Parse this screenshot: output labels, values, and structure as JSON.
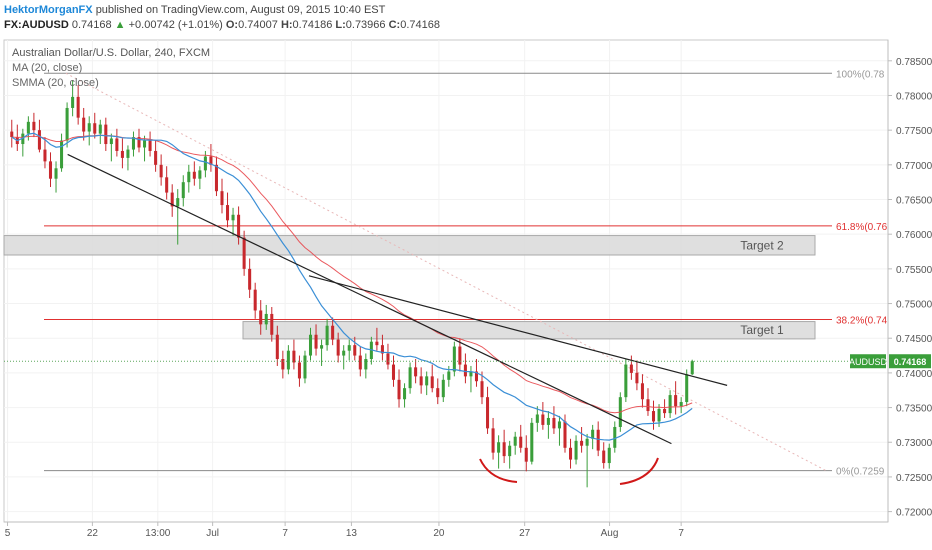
{
  "header": {
    "author": "HektorMorganFX",
    "published": "published on TradingView.com, August 09, 2015 10:40 EST",
    "symbol": "FX:AUDUSD",
    "last": "0.74168",
    "change": "+0.00742 (+1.01%)",
    "open_label": "O:",
    "open": "0.74007",
    "high_label": "H:",
    "high": "0.74186",
    "low_label": "L:",
    "low": "0.73966",
    "close_label": "C:",
    "close": "0.74168",
    "up_arrow": "▲"
  },
  "legend": {
    "title": "Australian Dollar/U.S. Dollar, 240, FXCM",
    "ma": "MA (20, close)",
    "smma": "SMMA (20, close)"
  },
  "chart_data": {
    "type": "candlestick",
    "title": "Australian Dollar/U.S. Dollar, 240, FXCM",
    "ylim": [
      0.7185,
      0.788
    ],
    "y_ticks": [
      "0.78500",
      "0.78000",
      "0.77500",
      "0.77000",
      "0.76500",
      "0.76000",
      "0.75500",
      "0.75000",
      "0.74500",
      "0.74000",
      "0.73500",
      "0.73000",
      "0.72500",
      "0.72000"
    ],
    "x_ticks": [
      "5",
      "22",
      "13:00",
      "Jul",
      "7",
      "13",
      "20",
      "27",
      "Aug",
      "7"
    ],
    "last_price_tag": "AUDUSD",
    "last_price": "0.74168",
    "colors": {
      "up": "#3a9e3a",
      "down": "#c8282d",
      "ma": "#e8474c",
      "smma": "#3b8fd6",
      "fib": "#e03030",
      "trend": "#222222"
    },
    "fib_levels": [
      {
        "label": "100%(0.78",
        "value": 0.7832
      },
      {
        "label": "61.8%(0.76",
        "value": 0.7612
      },
      {
        "label": "38.2%(0.74",
        "value": 0.7477
      },
      {
        "label": "0%(0.7259",
        "value": 0.7259
      }
    ],
    "targets": [
      {
        "label": "Target 2",
        "low": 0.757,
        "high": 0.7598
      },
      {
        "label": "Target 1",
        "low": 0.7449,
        "high": 0.7474
      }
    ],
    "trendlines": [
      {
        "x1": 0.072,
        "y1": 0.7715,
        "x2": 0.755,
        "y2": 0.7298
      },
      {
        "x1": 0.345,
        "y1": 0.754,
        "x2": 0.818,
        "y2": 0.7382
      }
    ],
    "ohlc": [
      [
        0.7748,
        0.7765,
        0.7725,
        0.774
      ],
      [
        0.774,
        0.7758,
        0.772,
        0.773
      ],
      [
        0.773,
        0.7752,
        0.7712,
        0.7745
      ],
      [
        0.7745,
        0.777,
        0.7735,
        0.7762
      ],
      [
        0.7762,
        0.7775,
        0.774,
        0.775
      ],
      [
        0.775,
        0.7765,
        0.7718,
        0.7722
      ],
      [
        0.7722,
        0.774,
        0.7695,
        0.7705
      ],
      [
        0.7705,
        0.7718,
        0.7668,
        0.768
      ],
      [
        0.768,
        0.7705,
        0.766,
        0.7695
      ],
      [
        0.7695,
        0.7745,
        0.769,
        0.7735
      ],
      [
        0.7735,
        0.779,
        0.7725,
        0.7782
      ],
      [
        0.7782,
        0.7822,
        0.777,
        0.7798
      ],
      [
        0.7798,
        0.7815,
        0.7758,
        0.7768
      ],
      [
        0.7768,
        0.7782,
        0.7735,
        0.7748
      ],
      [
        0.7748,
        0.777,
        0.7728,
        0.776
      ],
      [
        0.776,
        0.7775,
        0.7738,
        0.7745
      ],
      [
        0.7745,
        0.7765,
        0.773,
        0.7758
      ],
      [
        0.7758,
        0.7768,
        0.772,
        0.773
      ],
      [
        0.773,
        0.7745,
        0.7705,
        0.7738
      ],
      [
        0.7738,
        0.7752,
        0.7712,
        0.772
      ],
      [
        0.772,
        0.7738,
        0.7695,
        0.771
      ],
      [
        0.771,
        0.7728,
        0.7692,
        0.7722
      ],
      [
        0.7722,
        0.7748,
        0.7712,
        0.774
      ],
      [
        0.774,
        0.7752,
        0.7718,
        0.7725
      ],
      [
        0.7725,
        0.7742,
        0.7705,
        0.7735
      ],
      [
        0.7735,
        0.7748,
        0.7712,
        0.772
      ],
      [
        0.772,
        0.7735,
        0.769,
        0.77
      ],
      [
        0.77,
        0.7715,
        0.767,
        0.7682
      ],
      [
        0.7682,
        0.7698,
        0.765,
        0.766
      ],
      [
        0.766,
        0.7672,
        0.7625,
        0.764
      ],
      [
        0.764,
        0.7665,
        0.7585,
        0.7652
      ],
      [
        0.7652,
        0.7685,
        0.764,
        0.7675
      ],
      [
        0.7675,
        0.77,
        0.766,
        0.769
      ],
      [
        0.769,
        0.7705,
        0.767,
        0.768
      ],
      [
        0.768,
        0.7698,
        0.7665,
        0.7692
      ],
      [
        0.7692,
        0.772,
        0.7682,
        0.7712
      ],
      [
        0.7712,
        0.773,
        0.769,
        0.77
      ],
      [
        0.77,
        0.7712,
        0.7655,
        0.7662
      ],
      [
        0.7662,
        0.768,
        0.763,
        0.7642
      ],
      [
        0.7642,
        0.766,
        0.761,
        0.762
      ],
      [
        0.762,
        0.7638,
        0.7598,
        0.7628
      ],
      [
        0.7628,
        0.764,
        0.7585,
        0.7595
      ],
      [
        0.7595,
        0.7605,
        0.754,
        0.755
      ],
      [
        0.755,
        0.7565,
        0.7508,
        0.752
      ],
      [
        0.752,
        0.753,
        0.7478,
        0.749
      ],
      [
        0.749,
        0.7505,
        0.7455,
        0.747
      ],
      [
        0.747,
        0.7498,
        0.7462,
        0.7485
      ],
      [
        0.7485,
        0.7495,
        0.7445,
        0.7455
      ],
      [
        0.7455,
        0.7468,
        0.741,
        0.742
      ],
      [
        0.742,
        0.7432,
        0.7392,
        0.7405
      ],
      [
        0.7405,
        0.744,
        0.7398,
        0.7432
      ],
      [
        0.7432,
        0.7448,
        0.7405,
        0.7415
      ],
      [
        0.7415,
        0.7425,
        0.738,
        0.7392
      ],
      [
        0.7392,
        0.7432,
        0.7385,
        0.7425
      ],
      [
        0.7425,
        0.7465,
        0.7418,
        0.7455
      ],
      [
        0.7455,
        0.747,
        0.7425,
        0.7435
      ],
      [
        0.7435,
        0.7448,
        0.741,
        0.744
      ],
      [
        0.744,
        0.7478,
        0.7432,
        0.7468
      ],
      [
        0.7468,
        0.748,
        0.744,
        0.7448
      ],
      [
        0.7448,
        0.7458,
        0.7415,
        0.7425
      ],
      [
        0.7425,
        0.744,
        0.7405,
        0.7432
      ],
      [
        0.7432,
        0.7448,
        0.7418,
        0.744
      ],
      [
        0.744,
        0.7452,
        0.7418,
        0.7425
      ],
      [
        0.7425,
        0.7438,
        0.7395,
        0.7405
      ],
      [
        0.7405,
        0.7428,
        0.7392,
        0.742
      ],
      [
        0.742,
        0.7452,
        0.7412,
        0.7445
      ],
      [
        0.7445,
        0.7465,
        0.7432,
        0.744
      ],
      [
        0.744,
        0.7455,
        0.7418,
        0.7428
      ],
      [
        0.7428,
        0.7442,
        0.7405,
        0.7412
      ],
      [
        0.7412,
        0.7425,
        0.738,
        0.739
      ],
      [
        0.739,
        0.7405,
        0.735,
        0.7362
      ],
      [
        0.7362,
        0.7385,
        0.735,
        0.7378
      ],
      [
        0.7378,
        0.7415,
        0.737,
        0.7408
      ],
      [
        0.7408,
        0.742,
        0.7385,
        0.7395
      ],
      [
        0.7395,
        0.7408,
        0.737,
        0.7382
      ],
      [
        0.7382,
        0.7402,
        0.7368,
        0.7395
      ],
      [
        0.7395,
        0.7412,
        0.7372,
        0.7378
      ],
      [
        0.7378,
        0.7392,
        0.7355,
        0.7365
      ],
      [
        0.7365,
        0.7398,
        0.7358,
        0.739
      ],
      [
        0.739,
        0.741,
        0.738,
        0.7402
      ],
      [
        0.7402,
        0.7445,
        0.7395,
        0.7438
      ],
      [
        0.7438,
        0.745,
        0.7402,
        0.7412
      ],
      [
        0.7412,
        0.7428,
        0.7385,
        0.7395
      ],
      [
        0.7395,
        0.741,
        0.7372,
        0.7402
      ],
      [
        0.7402,
        0.742,
        0.738,
        0.7388
      ],
      [
        0.7388,
        0.7402,
        0.7355,
        0.7365
      ],
      [
        0.7365,
        0.738,
        0.7312,
        0.732
      ],
      [
        0.732,
        0.7335,
        0.7275,
        0.7285
      ],
      [
        0.7285,
        0.731,
        0.7262,
        0.73
      ],
      [
        0.73,
        0.7318,
        0.727,
        0.728
      ],
      [
        0.728,
        0.7302,
        0.7262,
        0.7295
      ],
      [
        0.7295,
        0.7315,
        0.7282,
        0.7308
      ],
      [
        0.7308,
        0.7325,
        0.7285,
        0.7292
      ],
      [
        0.7292,
        0.731,
        0.7258,
        0.7272
      ],
      [
        0.7272,
        0.7335,
        0.7268,
        0.7328
      ],
      [
        0.7328,
        0.7352,
        0.7315,
        0.734
      ],
      [
        0.734,
        0.7358,
        0.7318,
        0.7325
      ],
      [
        0.7325,
        0.7345,
        0.7305,
        0.7335
      ],
      [
        0.7335,
        0.7352,
        0.7312,
        0.732
      ],
      [
        0.732,
        0.7338,
        0.7295,
        0.733
      ],
      [
        0.733,
        0.734,
        0.7285,
        0.7292
      ],
      [
        0.7292,
        0.7305,
        0.7262,
        0.7275
      ],
      [
        0.7275,
        0.731,
        0.7268,
        0.7302
      ],
      [
        0.7302,
        0.7322,
        0.7285,
        0.7295
      ],
      [
        0.7295,
        0.7312,
        0.7235,
        0.7305
      ],
      [
        0.7305,
        0.7325,
        0.729,
        0.7318
      ],
      [
        0.7318,
        0.733,
        0.728,
        0.7288
      ],
      [
        0.7288,
        0.73,
        0.7262,
        0.727
      ],
      [
        0.727,
        0.7298,
        0.7262,
        0.7292
      ],
      [
        0.7292,
        0.733,
        0.7285,
        0.7322
      ],
      [
        0.7322,
        0.7372,
        0.7315,
        0.7365
      ],
      [
        0.7365,
        0.742,
        0.7358,
        0.7412
      ],
      [
        0.7412,
        0.7425,
        0.739,
        0.74
      ],
      [
        0.74,
        0.7418,
        0.7375,
        0.7385
      ],
      [
        0.7385,
        0.7398,
        0.735,
        0.7362
      ],
      [
        0.7362,
        0.7378,
        0.7338,
        0.7345
      ],
      [
        0.7345,
        0.736,
        0.7318,
        0.733
      ],
      [
        0.733,
        0.7355,
        0.7322,
        0.7348
      ],
      [
        0.7348,
        0.7362,
        0.7335,
        0.7342
      ],
      [
        0.7342,
        0.7375,
        0.7335,
        0.7368
      ],
      [
        0.7368,
        0.7388,
        0.734,
        0.7352
      ],
      [
        0.7352,
        0.7365,
        0.7342,
        0.7358
      ],
      [
        0.7358,
        0.7405,
        0.7352,
        0.7398
      ],
      [
        0.7398,
        0.7419,
        0.7397,
        0.7417
      ]
    ]
  }
}
